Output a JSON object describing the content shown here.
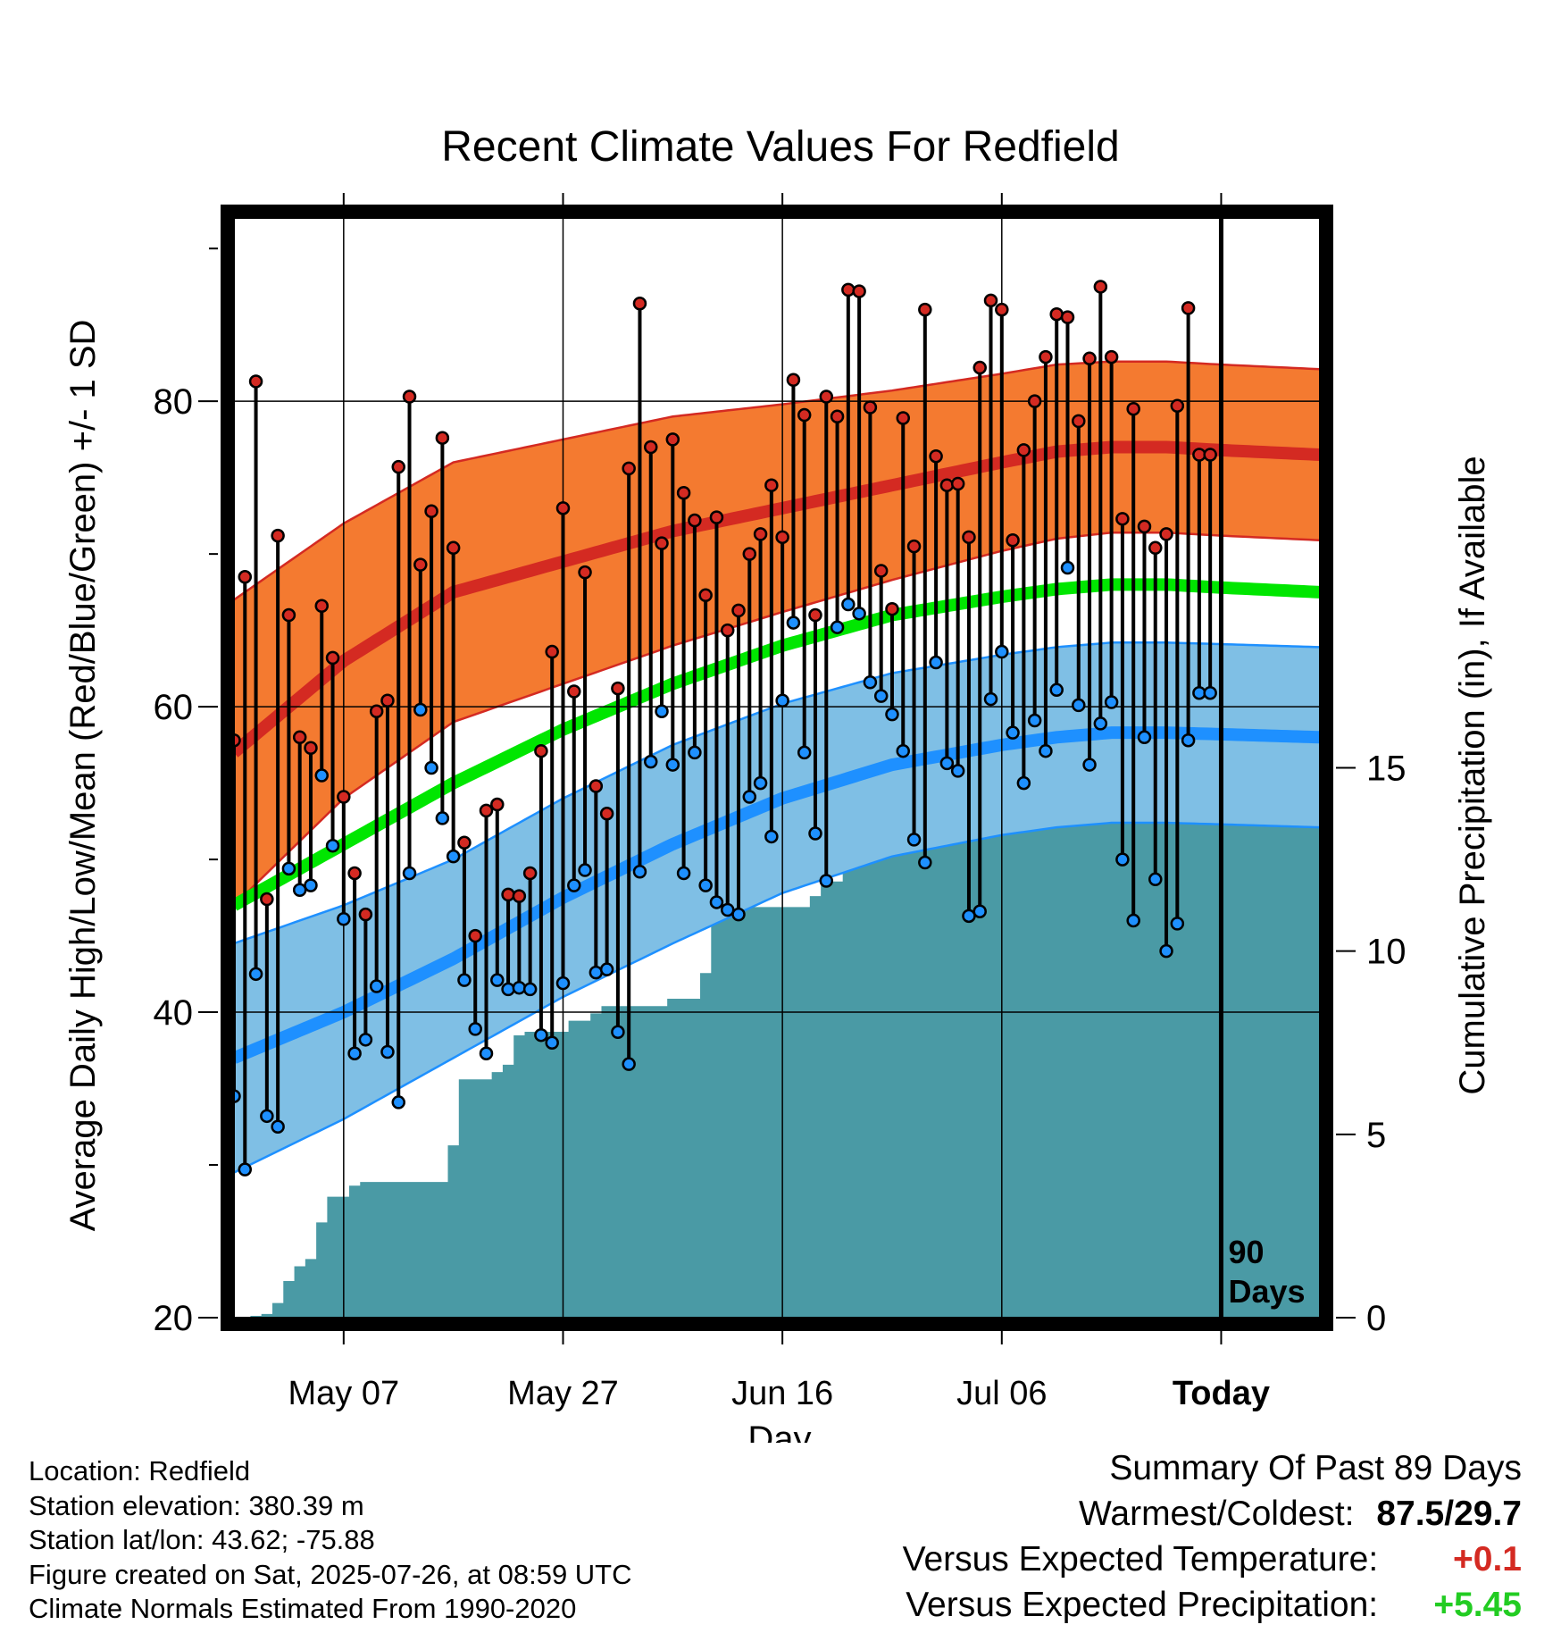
{
  "chart_data": {
    "type": "line",
    "title": "Recent Climate Values For Redfield",
    "xlabel": "Day",
    "ylabel": "Average Daily High/Low/Mean (Red/Blue/Green) +/- 1 SD",
    "y2label": "Cumulative Precipitation (in), If Available",
    "ylim": [
      20,
      92
    ],
    "y_ticks": [
      20,
      40,
      60,
      80
    ],
    "y2lim": [
      0,
      30
    ],
    "y2_ticks": [
      0,
      5,
      10,
      15
    ],
    "x_range_days": [
      0,
      99
    ],
    "x_ticks": [
      {
        "day": 10,
        "label": "May 07"
      },
      {
        "day": 30,
        "label": "May 27"
      },
      {
        "day": 50,
        "label": "Jun 16"
      },
      {
        "day": 70,
        "label": "Jul 06"
      },
      {
        "day": 90,
        "label": "Today"
      }
    ],
    "today_marker": {
      "day": 90,
      "label_line1": "90",
      "label_line2": "Days"
    },
    "grid": true,
    "colors": {
      "high_band": "#f47a30",
      "high_mean": "#d42a22",
      "low_band": "#7fbfe5",
      "low_mean": "#1e90ff",
      "mean_line": "#00e600",
      "precip": "#4a9aa5",
      "high_point": "#d42a22",
      "low_point": "#1e90ff",
      "positive_temp": "#d42a22",
      "positive_precip": "#22cc22"
    },
    "normals": {
      "day": [
        0,
        10,
        20,
        30,
        40,
        50,
        60,
        70,
        75,
        80,
        85,
        90,
        99
      ],
      "high_mean": [
        57.0,
        63.0,
        67.5,
        69.5,
        71.5,
        73.0,
        74.5,
        76.0,
        76.7,
        77.0,
        77.0,
        76.8,
        76.5
      ],
      "high_sd": [
        10.0,
        9.0,
        8.5,
        8.0,
        7.5,
        6.8,
        6.2,
        5.8,
        5.7,
        5.6,
        5.6,
        5.6,
        5.6
      ],
      "mean": [
        47.0,
        51.0,
        55.0,
        58.5,
        61.5,
        64.0,
        66.0,
        67.2,
        67.7,
        68.0,
        68.0,
        67.8,
        67.5
      ],
      "low_mean": [
        37.0,
        40.0,
        43.5,
        47.5,
        51.0,
        54.0,
        56.2,
        57.5,
        58.0,
        58.3,
        58.3,
        58.2,
        58.0
      ],
      "low_sd": [
        7.5,
        7.0,
        6.5,
        6.5,
        6.5,
        6.2,
        6.0,
        5.9,
        5.9,
        5.9,
        5.9,
        5.9,
        5.9
      ]
    },
    "series": [
      {
        "name": "High",
        "x": [
          0,
          1,
          2,
          3,
          4,
          5,
          6,
          7,
          8,
          9,
          10,
          11,
          12,
          13,
          14,
          15,
          16,
          17,
          18,
          19,
          20,
          21,
          22,
          23,
          24,
          25,
          26,
          27,
          28,
          29,
          30,
          31,
          32,
          33,
          34,
          35,
          36,
          37,
          38,
          39,
          40,
          41,
          42,
          43,
          44,
          45,
          46,
          47,
          48,
          49,
          50,
          51,
          52,
          53,
          54,
          55,
          56,
          57,
          58,
          59,
          60,
          61,
          62,
          63,
          64,
          65,
          66,
          67,
          68,
          69,
          70,
          71,
          72,
          73,
          74,
          75,
          76,
          77,
          78,
          79,
          80,
          81,
          82,
          83,
          84,
          85,
          86,
          87,
          88,
          89
        ],
        "values": [
          57.8,
          68.5,
          81.3,
          47.4,
          71.2,
          66.0,
          58.0,
          57.3,
          66.6,
          63.2,
          54.1,
          49.1,
          46.4,
          59.7,
          60.4,
          75.7,
          80.3,
          69.3,
          72.8,
          77.6,
          70.4,
          51.1,
          45.0,
          53.2,
          53.6,
          47.7,
          47.6,
          49.1,
          57.1,
          63.6,
          73.0,
          61.0,
          68.8,
          54.8,
          53.0,
          61.2,
          75.6,
          86.4,
          77.0,
          70.7,
          77.5,
          74.0,
          72.2,
          67.3,
          72.4,
          65.0,
          66.3,
          70.0,
          71.3,
          74.5,
          71.1,
          81.4,
          79.1,
          66.0,
          80.3,
          79.0,
          87.3,
          87.2,
          79.6,
          68.9,
          66.4,
          78.9,
          70.5,
          86.0,
          76.4,
          74.5,
          74.6,
          71.1,
          82.2,
          86.6,
          86.0,
          70.9,
          76.8,
          80.0,
          82.9,
          85.7,
          85.5,
          78.7,
          82.8,
          87.5,
          82.9,
          72.3,
          79.5,
          71.8,
          70.4,
          71.3,
          79.7,
          86.1,
          76.5,
          76.5
        ]
      },
      {
        "name": "Low",
        "x": [
          0,
          1,
          2,
          3,
          4,
          5,
          6,
          7,
          8,
          9,
          10,
          11,
          12,
          13,
          14,
          15,
          16,
          17,
          18,
          19,
          20,
          21,
          22,
          23,
          24,
          25,
          26,
          27,
          28,
          29,
          30,
          31,
          32,
          33,
          34,
          35,
          36,
          37,
          38,
          39,
          40,
          41,
          42,
          43,
          44,
          45,
          46,
          47,
          48,
          49,
          50,
          51,
          52,
          53,
          54,
          55,
          56,
          57,
          58,
          59,
          60,
          61,
          62,
          63,
          64,
          65,
          66,
          67,
          68,
          69,
          70,
          71,
          72,
          73,
          74,
          75,
          76,
          77,
          78,
          79,
          80,
          81,
          82,
          83,
          84,
          85,
          86,
          87,
          88,
          89
        ],
        "values": [
          34.5,
          29.7,
          42.5,
          33.2,
          32.5,
          49.4,
          48.0,
          48.3,
          55.5,
          50.9,
          46.1,
          37.3,
          38.2,
          41.7,
          37.4,
          34.1,
          49.1,
          59.8,
          56.0,
          52.7,
          50.2,
          42.1,
          38.9,
          37.3,
          42.1,
          41.5,
          41.6,
          41.5,
          38.5,
          38.0,
          41.9,
          48.3,
          49.3,
          42.6,
          42.8,
          38.7,
          36.6,
          49.2,
          56.4,
          59.7,
          56.2,
          49.1,
          57.0,
          48.3,
          47.2,
          46.7,
          46.4,
          54.1,
          55.0,
          51.5,
          60.4,
          65.5,
          57.0,
          51.7,
          48.6,
          65.2,
          66.7,
          66.1,
          61.6,
          60.7,
          59.5,
          57.1,
          51.3,
          49.8,
          62.9,
          56.3,
          55.8,
          46.3,
          46.6,
          60.5,
          63.6,
          58.3,
          55.0,
          59.1,
          57.1,
          61.1,
          69.1,
          60.1,
          56.2,
          58.9,
          60.3,
          50.0,
          46.0,
          58.0,
          48.7,
          44.0,
          45.8,
          57.8,
          60.9,
          60.9
        ]
      },
      {
        "name": "Cumulative Precipitation",
        "axis": "right",
        "x": [
          0,
          1,
          2,
          3,
          4,
          5,
          6,
          7,
          8,
          9,
          10,
          11,
          12,
          13,
          14,
          15,
          16,
          17,
          18,
          19,
          20,
          21,
          22,
          23,
          24,
          25,
          26,
          27,
          28,
          29,
          30,
          31,
          32,
          33,
          34,
          35,
          36,
          37,
          38,
          39,
          40,
          41,
          42,
          43,
          44,
          45,
          46,
          47,
          48,
          49,
          50,
          51,
          52,
          53,
          54,
          55,
          56,
          57,
          58,
          59,
          60,
          61,
          62,
          63,
          64,
          65,
          66,
          67,
          68,
          69,
          70,
          71,
          72,
          73,
          74,
          75,
          76,
          77,
          78,
          79,
          80,
          81,
          82,
          83,
          84,
          85,
          86,
          87,
          88,
          89
        ],
        "values": [
          0,
          0,
          0.05,
          0.1,
          0.4,
          1.0,
          1.4,
          1.6,
          2.6,
          3.3,
          3.3,
          3.6,
          3.7,
          3.7,
          3.7,
          3.7,
          3.7,
          3.7,
          3.7,
          3.7,
          4.7,
          6.5,
          6.5,
          6.5,
          6.7,
          6.9,
          7.7,
          7.8,
          7.8,
          7.8,
          7.8,
          8.1,
          8.1,
          8.3,
          8.5,
          8.5,
          8.5,
          8.5,
          8.5,
          8.5,
          8.7,
          8.7,
          8.7,
          9.4,
          11.1,
          11.2,
          11.2,
          11.2,
          11.2,
          11.2,
          11.2,
          11.2,
          11.2,
          11.5,
          11.9,
          11.9,
          14.2,
          14.2,
          14.2,
          14.3,
          14.3,
          14.4,
          14.5,
          14.5,
          15.0,
          15.2,
          15.3,
          15.8,
          15.8,
          15.8,
          15.8,
          15.8,
          15.8,
          15.8,
          15.8,
          15.8,
          15.9,
          16.2,
          16.9,
          16.9,
          16.9,
          17.0,
          17.0,
          17.0,
          17.0,
          17.0,
          17.0,
          17.0,
          17.0,
          17.0
        ]
      }
    ]
  },
  "info": {
    "location": "Location: Redfield",
    "elevation": "Station elevation: 380.39 m",
    "latlon": "Station lat/lon: 43.62; -75.88",
    "created": "Figure created on Sat, 2025-07-26, at 08:59 UTC",
    "normals": "Climate Normals Estimated From 1990-2020"
  },
  "summary": {
    "title": "Summary Of Past 89 Days",
    "warmest_label": "Warmest/Coldest:",
    "warmest_value": "87.5",
    "slash": "/",
    "coldest_value": "29.7",
    "temp_label": "Versus Expected Temperature:",
    "temp_value": "+0.1",
    "precip_label": "Versus Expected Precipitation:",
    "precip_value": "+5.45"
  }
}
